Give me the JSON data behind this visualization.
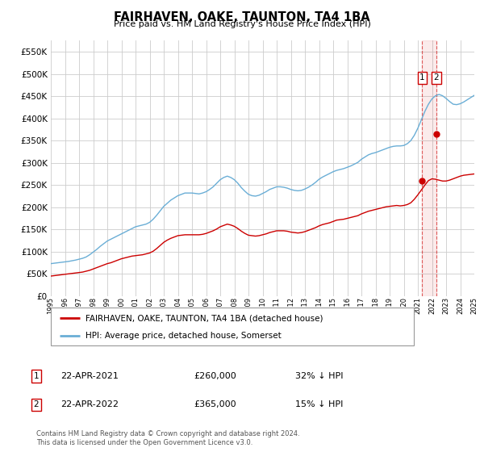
{
  "title": "FAIRHAVEN, OAKE, TAUNTON, TA4 1BA",
  "subtitle": "Price paid vs. HM Land Registry's House Price Index (HPI)",
  "ytick_values": [
    0,
    50000,
    100000,
    150000,
    200000,
    250000,
    300000,
    350000,
    400000,
    450000,
    500000,
    550000
  ],
  "ylim": [
    0,
    575000
  ],
  "hpi_color": "#6aaed6",
  "price_color": "#cc0000",
  "vline_color": "#cc0000",
  "background_color": "#ffffff",
  "grid_color": "#cccccc",
  "legend_label_price": "FAIRHAVEN, OAKE, TAUNTON, TA4 1BA (detached house)",
  "legend_label_hpi": "HPI: Average price, detached house, Somerset",
  "note1_date": "22-APR-2021",
  "note1_price": "£260,000",
  "note1_hpi": "32% ↓ HPI",
  "note2_date": "22-APR-2022",
  "note2_price": "£365,000",
  "note2_hpi": "15% ↓ HPI",
  "footnote": "Contains HM Land Registry data © Crown copyright and database right 2024.\nThis data is licensed under the Open Government Licence v3.0.",
  "sale1_year": 2021.31,
  "sale2_year": 2022.31,
  "sale1_price": 260000,
  "sale2_price": 365000,
  "hpi_years": [
    1995.0,
    1995.25,
    1995.5,
    1995.75,
    1996.0,
    1996.25,
    1996.5,
    1996.75,
    1997.0,
    1997.25,
    1997.5,
    1997.75,
    1998.0,
    1998.25,
    1998.5,
    1998.75,
    1999.0,
    1999.25,
    1999.5,
    1999.75,
    2000.0,
    2000.25,
    2000.5,
    2000.75,
    2001.0,
    2001.25,
    2001.5,
    2001.75,
    2002.0,
    2002.25,
    2002.5,
    2002.75,
    2003.0,
    2003.25,
    2003.5,
    2003.75,
    2004.0,
    2004.25,
    2004.5,
    2004.75,
    2005.0,
    2005.25,
    2005.5,
    2005.75,
    2006.0,
    2006.25,
    2006.5,
    2006.75,
    2007.0,
    2007.25,
    2007.5,
    2007.75,
    2008.0,
    2008.25,
    2008.5,
    2008.75,
    2009.0,
    2009.25,
    2009.5,
    2009.75,
    2010.0,
    2010.25,
    2010.5,
    2010.75,
    2011.0,
    2011.25,
    2011.5,
    2011.75,
    2012.0,
    2012.25,
    2012.5,
    2012.75,
    2013.0,
    2013.25,
    2013.5,
    2013.75,
    2014.0,
    2014.25,
    2014.5,
    2014.75,
    2015.0,
    2015.25,
    2015.5,
    2015.75,
    2016.0,
    2016.25,
    2016.5,
    2016.75,
    2017.0,
    2017.25,
    2017.5,
    2017.75,
    2018.0,
    2018.25,
    2018.5,
    2018.75,
    2019.0,
    2019.25,
    2019.5,
    2019.75,
    2020.0,
    2020.25,
    2020.5,
    2020.75,
    2021.0,
    2021.25,
    2021.5,
    2021.75,
    2022.0,
    2022.25,
    2022.5,
    2022.75,
    2023.0,
    2023.25,
    2023.5,
    2023.75,
    2024.0,
    2024.25,
    2024.5,
    2024.75,
    2025.0
  ],
  "hpi_values": [
    73000,
    74000,
    75000,
    76000,
    77000,
    78000,
    79500,
    81000,
    83000,
    85000,
    88000,
    93000,
    99000,
    105000,
    112000,
    118000,
    124000,
    128000,
    132000,
    136000,
    140000,
    144000,
    148000,
    152000,
    156000,
    158000,
    160000,
    162000,
    166000,
    173000,
    182000,
    192000,
    202000,
    209000,
    216000,
    221000,
    226000,
    229000,
    232000,
    232000,
    232000,
    231000,
    230000,
    232000,
    235000,
    240000,
    246000,
    254000,
    262000,
    267000,
    270000,
    267000,
    262000,
    254000,
    244000,
    236000,
    229000,
    226000,
    225000,
    227000,
    231000,
    235000,
    240000,
    243000,
    246000,
    246000,
    245000,
    243000,
    240000,
    238000,
    237000,
    238000,
    241000,
    245000,
    250000,
    256000,
    263000,
    268000,
    272000,
    276000,
    280000,
    283000,
    285000,
    287000,
    290000,
    293000,
    297000,
    301000,
    308000,
    313000,
    318000,
    321000,
    323000,
    326000,
    329000,
    332000,
    335000,
    337000,
    338000,
    338000,
    339000,
    343000,
    350000,
    362000,
    378000,
    397000,
    416000,
    432000,
    444000,
    451000,
    454000,
    451000,
    445000,
    438000,
    432000,
    431000,
    433000,
    437000,
    442000,
    447000,
    452000
  ],
  "price_years": [
    1995.0,
    1995.25,
    1995.5,
    1995.75,
    1996.0,
    1996.25,
    1996.5,
    1996.75,
    1997.0,
    1997.25,
    1997.5,
    1997.75,
    1998.0,
    1998.25,
    1998.5,
    1998.75,
    1999.0,
    1999.25,
    1999.5,
    1999.75,
    2000.0,
    2000.25,
    2000.5,
    2000.75,
    2001.0,
    2001.25,
    2001.5,
    2001.75,
    2002.0,
    2002.25,
    2002.5,
    2002.75,
    2003.0,
    2003.25,
    2003.5,
    2003.75,
    2004.0,
    2004.25,
    2004.5,
    2004.75,
    2005.0,
    2005.25,
    2005.5,
    2005.75,
    2006.0,
    2006.25,
    2006.5,
    2006.75,
    2007.0,
    2007.25,
    2007.5,
    2007.75,
    2008.0,
    2008.25,
    2008.5,
    2008.75,
    2009.0,
    2009.25,
    2009.5,
    2009.75,
    2010.0,
    2010.25,
    2010.5,
    2010.75,
    2011.0,
    2011.25,
    2011.5,
    2011.75,
    2012.0,
    2012.25,
    2012.5,
    2012.75,
    2013.0,
    2013.25,
    2013.5,
    2013.75,
    2014.0,
    2014.25,
    2014.5,
    2014.75,
    2015.0,
    2015.25,
    2015.5,
    2015.75,
    2016.0,
    2016.25,
    2016.5,
    2016.75,
    2017.0,
    2017.25,
    2017.5,
    2017.75,
    2018.0,
    2018.25,
    2018.5,
    2018.75,
    2019.0,
    2019.25,
    2019.5,
    2019.75,
    2020.0,
    2020.25,
    2020.5,
    2020.75,
    2021.0,
    2021.25,
    2021.5,
    2021.75,
    2022.0,
    2022.25,
    2022.5,
    2022.75,
    2023.0,
    2023.25,
    2023.5,
    2023.75,
    2024.0,
    2024.25,
    2024.5,
    2024.75,
    2025.0
  ],
  "price_values": [
    45000,
    46000,
    47000,
    48000,
    49000,
    50000,
    51000,
    52000,
    53000,
    54000,
    56000,
    58000,
    61000,
    64000,
    67000,
    70000,
    73000,
    75000,
    78000,
    81000,
    84000,
    86000,
    88000,
    90000,
    91000,
    92000,
    93000,
    95000,
    97000,
    101000,
    107000,
    114000,
    121000,
    126000,
    130000,
    133000,
    136000,
    137000,
    138000,
    138000,
    138000,
    138000,
    138000,
    139000,
    141000,
    144000,
    147000,
    151000,
    156000,
    159000,
    162000,
    160000,
    157000,
    152000,
    146000,
    141000,
    137000,
    136000,
    135000,
    136000,
    138000,
    140000,
    143000,
    145000,
    147000,
    147000,
    147000,
    146000,
    144000,
    143000,
    142000,
    143000,
    145000,
    148000,
    151000,
    154000,
    158000,
    161000,
    163000,
    165000,
    168000,
    171000,
    172000,
    173000,
    175000,
    177000,
    179000,
    181000,
    185000,
    188000,
    191000,
    193000,
    195000,
    197000,
    199000,
    201000,
    202000,
    203000,
    204000,
    203000,
    204000,
    206000,
    210000,
    218000,
    228000,
    239000,
    250000,
    260000,
    264000,
    263000,
    261000,
    259000,
    259000,
    261000,
    264000,
    267000,
    270000,
    272000,
    273000,
    274000,
    275000
  ],
  "xmin": 1995,
  "xmax": 2025
}
